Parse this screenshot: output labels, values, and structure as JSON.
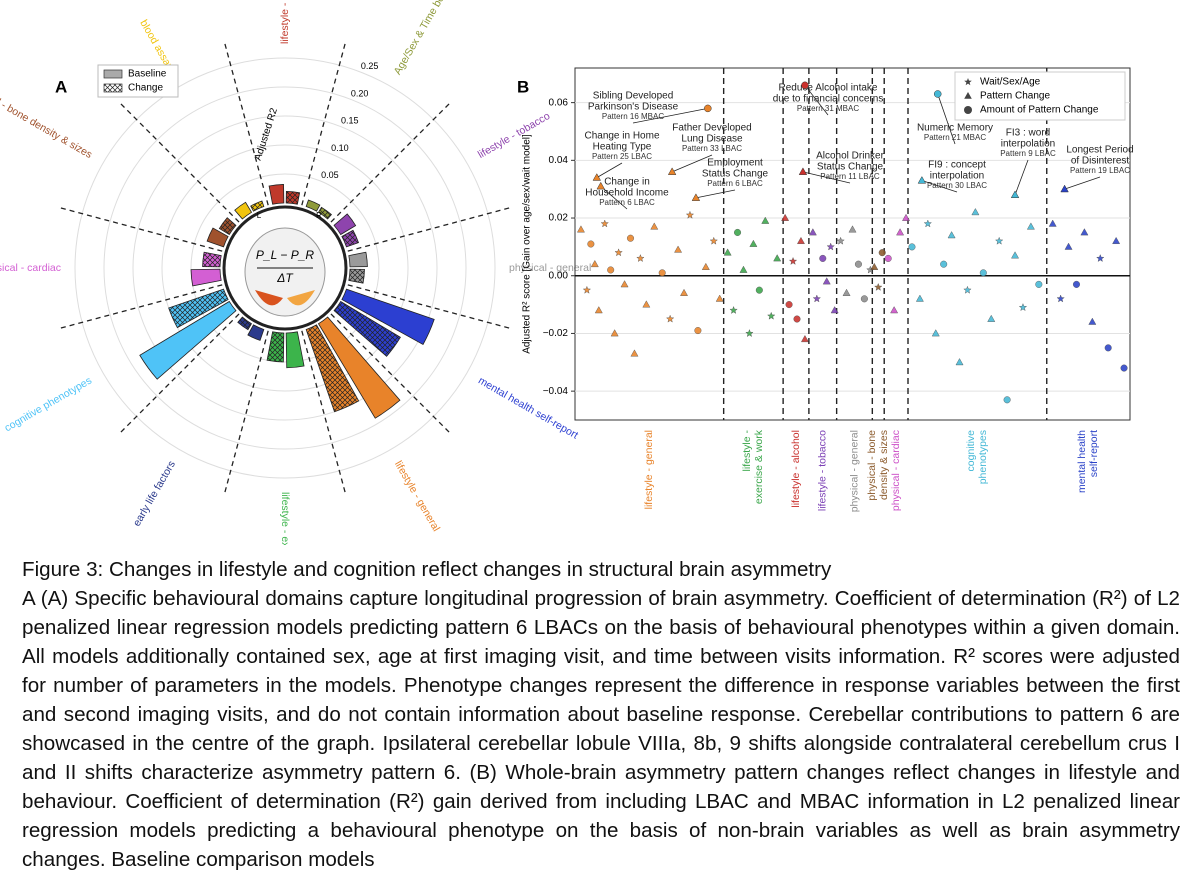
{
  "chart_data": [
    {
      "type": "radial_bar",
      "label": "A",
      "legend": [
        "Baseline",
        "Change"
      ],
      "axis_label": "Adjusted R2",
      "rlim": [
        0,
        0.25
      ],
      "rticks": [
        {
          "value": 0.05,
          "label": "0.05"
        },
        {
          "value": 0.1,
          "label": "0.10"
        },
        {
          "value": 0.15,
          "label": "0.15"
        },
        {
          "value": 0.2,
          "label": "0.20"
        },
        {
          "value": 0.25,
          "label": "0.25"
        }
      ],
      "center_numerator": "P_L − P_R",
      "center_denominator": "ΔT",
      "center_left": "L",
      "center_right": "R",
      "domains": [
        {
          "name": "lifestyle - alcohol",
          "color": "#c0392b",
          "baseline": 0.032,
          "change": 0.02
        },
        {
          "name": "Age/Sex & Time between Visits",
          "color": "#8e9a3a",
          "baseline": 0.012,
          "change": 0.01
        },
        {
          "name": "lifestyle - tobacco",
          "color": "#8e44ad",
          "baseline": 0.03,
          "change": 0.022
        },
        {
          "name": "physical - general",
          "color": "#9a9a9a",
          "baseline": 0.03,
          "change": 0.025
        },
        {
          "name": "mental health self-report",
          "color": "#2c3fd1",
          "baseline": 0.16,
          "change": 0.12
        },
        {
          "name": "lifestyle - general",
          "color": "#e8832a",
          "baseline": 0.19,
          "change": 0.15
        },
        {
          "name": "lifestyle - exercise & work",
          "color": "#3cb44b",
          "baseline": 0.06,
          "change": 0.05
        },
        {
          "name": "early life factors",
          "color": "#2b3a8c",
          "baseline": 0.02,
          "change": 0.012
        },
        {
          "name": "cognitive phenotypes",
          "color": "#4fc3f7",
          "baseline": 0.18,
          "change": 0.1
        },
        {
          "name": "physical - cardiac",
          "color": "#d35fd3",
          "baseline": 0.05,
          "change": 0.03
        },
        {
          "name": "physical - bone density & sizes",
          "color": "#a0522d",
          "baseline": 0.03,
          "change": 0.02
        },
        {
          "name": "blood assays",
          "color": "#f1c40f",
          "baseline": 0.02,
          "change": 0.01
        }
      ]
    },
    {
      "type": "scatter",
      "label": "B",
      "ylabel": "Adjusted R² score [Gain over age/sex/wait model]",
      "ylim": [
        -0.05,
        0.072
      ],
      "yticks": [
        {
          "value": -0.04,
          "label": "−0.04"
        },
        {
          "value": -0.02,
          "label": "−0.02"
        },
        {
          "value": 0,
          "label": "0.00"
        },
        {
          "value": 0.02,
          "label": "0.02"
        },
        {
          "value": 0.04,
          "label": "0.04"
        },
        {
          "value": 0.06,
          "label": "0.06"
        }
      ],
      "xlim": [
        0,
        280
      ],
      "boundaries": [
        75,
        105,
        118,
        132,
        150,
        156,
        168,
        238
      ],
      "grid": true,
      "legend": [
        {
          "name": "Wait/Sex/Age",
          "marker": "s"
        },
        {
          "name": "Pattern Change",
          "marker": "t"
        },
        {
          "name": "Amount of Pattern Change",
          "marker": "c"
        }
      ],
      "groups": [
        {
          "label": [
            "lifestyle - general"
          ],
          "color": "#e8832a",
          "x": [
            3,
            6,
            8,
            10,
            12,
            15,
            18,
            20,
            22,
            25,
            28,
            30,
            33,
            36,
            40,
            44,
            48,
            52,
            55,
            58,
            62,
            66,
            70,
            73
          ],
          "values": [
            0.016,
            -0.005,
            0.011,
            0.004,
            -0.012,
            0.018,
            0.002,
            -0.02,
            0.008,
            -0.003,
            0.013,
            -0.027,
            0.006,
            -0.01,
            0.017,
            0.001,
            -0.015,
            0.009,
            -0.006,
            0.021,
            -0.019,
            0.003,
            0.012,
            -0.008
          ],
          "markers": [
            "t",
            "s",
            "c",
            "t",
            "t",
            "s",
            "c",
            "t",
            "s",
            "t",
            "c",
            "t",
            "s",
            "t",
            "t",
            "c",
            "s",
            "t",
            "t",
            "s",
            "c",
            "t",
            "s",
            "t"
          ]
        },
        {
          "label": [
            "lifestyle -",
            "exercise & work"
          ],
          "color": "#3aa64a",
          "x": [
            77,
            80,
            82,
            85,
            88,
            90,
            93,
            96,
            99,
            102
          ],
          "values": [
            0.008,
            -0.012,
            0.015,
            0.002,
            -0.02,
            0.011,
            -0.005,
            0.019,
            -0.014,
            0.006
          ],
          "markers": [
            "t",
            "s",
            "c",
            "t",
            "s",
            "t",
            "c",
            "t",
            "s",
            "t"
          ]
        },
        {
          "label": [
            "lifestyle - alcohol"
          ],
          "color": "#c9302c",
          "x": [
            106,
            108,
            110,
            112,
            114,
            116
          ],
          "values": [
            0.02,
            -0.01,
            0.005,
            -0.015,
            0.012,
            -0.022
          ],
          "markers": [
            "t",
            "c",
            "s",
            "c",
            "t",
            "t"
          ]
        },
        {
          "label": [
            "lifestyle - tobacco"
          ],
          "color": "#7b3fb5",
          "x": [
            120,
            122,
            125,
            127,
            129,
            131
          ],
          "values": [
            0.015,
            -0.008,
            0.006,
            -0.002,
            0.01,
            -0.012
          ],
          "markers": [
            "t",
            "s",
            "c",
            "t",
            "s",
            "t"
          ]
        },
        {
          "label": [
            "physical - general"
          ],
          "color": "#8c8c8c",
          "x": [
            134,
            137,
            140,
            143,
            146,
            149
          ],
          "values": [
            0.012,
            -0.006,
            0.016,
            0.004,
            -0.008,
            0.002
          ],
          "markers": [
            "s",
            "t",
            "t",
            "c",
            "c",
            "s"
          ]
        },
        {
          "label": [
            "physical - bone",
            "density & sizes"
          ],
          "color": "#8b5a2b",
          "x": [
            151,
            153,
            155
          ],
          "values": [
            0.003,
            -0.004,
            0.008
          ],
          "markers": [
            "t",
            "s",
            "c"
          ]
        },
        {
          "label": [
            "physical - cardiac"
          ],
          "color": "#cc4fc7",
          "x": [
            158,
            161,
            164,
            167
          ],
          "values": [
            0.006,
            -0.012,
            0.015,
            0.02
          ],
          "markers": [
            "c",
            "t",
            "t",
            "t"
          ]
        },
        {
          "label": [
            "cognitive",
            "phenotypes"
          ],
          "color": "#44b8d6",
          "x": [
            170,
            174,
            178,
            182,
            186,
            190,
            194,
            198,
            202,
            206,
            210,
            214,
            218,
            222,
            226,
            230,
            234
          ],
          "values": [
            0.01,
            -0.008,
            0.018,
            -0.02,
            0.004,
            0.014,
            -0.03,
            -0.005,
            0.022,
            0.001,
            -0.015,
            0.012,
            -0.043,
            0.007,
            -0.011,
            0.017,
            -0.003
          ],
          "markers": [
            "c",
            "t",
            "s",
            "t",
            "c",
            "t",
            "t",
            "s",
            "t",
            "c",
            "t",
            "s",
            "c",
            "t",
            "s",
            "t",
            "c"
          ]
        },
        {
          "label": [
            "mental health",
            "self-report"
          ],
          "color": "#2b43c8",
          "x": [
            241,
            245,
            249,
            253,
            257,
            261,
            265,
            269,
            273,
            277
          ],
          "values": [
            0.018,
            -0.008,
            0.01,
            -0.003,
            0.015,
            -0.016,
            0.006,
            -0.025,
            0.012,
            -0.032
          ],
          "markers": [
            "t",
            "s",
            "t",
            "c",
            "t",
            "t",
            "s",
            "c",
            "t",
            "c"
          ]
        }
      ],
      "annotations": [
        {
          "lines": [
            "Sibling Developed",
            "Parkinson's Disease"
          ],
          "pattern": "Pattern 16 MBAC",
          "x": 67,
          "y": 0.058,
          "color": "#e8832a",
          "marker": "c"
        },
        {
          "lines": [
            "Change in Home",
            "Heating Type"
          ],
          "pattern": "Pattern 25 LBAC",
          "x": 11,
          "y": 0.034,
          "color": "#e8832a",
          "marker": "t"
        },
        {
          "lines": [
            "Father Developed",
            "Lung Disease"
          ],
          "pattern": "Pattern 33 LBAC",
          "x": 49,
          "y": 0.036,
          "color": "#e8832a",
          "marker": "t"
        },
        {
          "lines": [
            "Employment",
            "Status Change"
          ],
          "pattern": "Pattern 6 LBAC",
          "x": 61,
          "y": 0.027,
          "color": "#e8832a",
          "marker": "t"
        },
        {
          "lines": [
            "Change in",
            "Household Income"
          ],
          "pattern": "Pattern 6 LBAC",
          "x": 13,
          "y": 0.031,
          "color": "#e8832a",
          "marker": "t"
        },
        {
          "lines": [
            "Reduce Alcohol intake",
            "due to financial concerns"
          ],
          "pattern": "Pattern 31 MBAC",
          "x": 116,
          "y": 0.066,
          "color": "#c9302c",
          "marker": "c"
        },
        {
          "lines": [
            "Alcohol Drinker",
            "Status Change"
          ],
          "pattern": "Pattern 11 LBAC",
          "x": 115,
          "y": 0.036,
          "color": "#c9302c",
          "marker": "t"
        },
        {
          "lines": [
            "Numeric Memory"
          ],
          "pattern": "Pattern 21 MBAC",
          "x": 183,
          "y": 0.063,
          "color": "#44b8d6",
          "marker": "c"
        },
        {
          "lines": [
            "FI9 : concept",
            "interpolation"
          ],
          "pattern": "Pattern 30 LBAC",
          "x": 175,
          "y": 0.033,
          "color": "#44b8d6",
          "marker": "t"
        },
        {
          "lines": [
            "FI3 : word",
            "interpolation"
          ],
          "pattern": "Pattern 9 LBAC",
          "x": 222,
          "y": 0.028,
          "color": "#44b8d6",
          "marker": "t"
        },
        {
          "lines": [
            "Longest Period",
            "of Disinterest"
          ],
          "pattern": "Pattern 19 LBAC",
          "x": 247,
          "y": 0.03,
          "color": "#2b43c8",
          "marker": "t"
        }
      ]
    }
  ],
  "caption": {
    "title": "Figure 3: Changes in lifestyle and cognition reflect changes in structural brain asymmetry",
    "body": "A (A) Specific behavioural domains capture longitudinal progression of brain asymmetry. Coefficient of determination (R²) of L2 penalized linear regression models predicting pattern 6 LBACs on the basis of behavioural phenotypes within a given domain. All models additionally contained sex, age at first imaging visit, and time between visits information. R² scores were adjusted for number of parameters in the models. Phenotype changes represent the difference in response variables between the first and second imaging visits, and do not contain information about baseline response. Cerebellar contributions to pattern 6 are showcased in the centre of the graph. Ipsilateral cerebellar lobule VIIIa, 8b, 9 shifts alongside contralateral cerebellum crus I and II shifts characterize asymmetry pattern 6. (B) Whole-brain asymmetry pattern changes reflect changes in lifestyle and behaviour. Coefficient of determination (R²) gain derived from including LBAC and MBAC information in L2 penalized linear regression models predicting a behavioural phenotype on the basis of non-brain variables as well as brain asymmetry changes. Baseline comparison models"
  }
}
